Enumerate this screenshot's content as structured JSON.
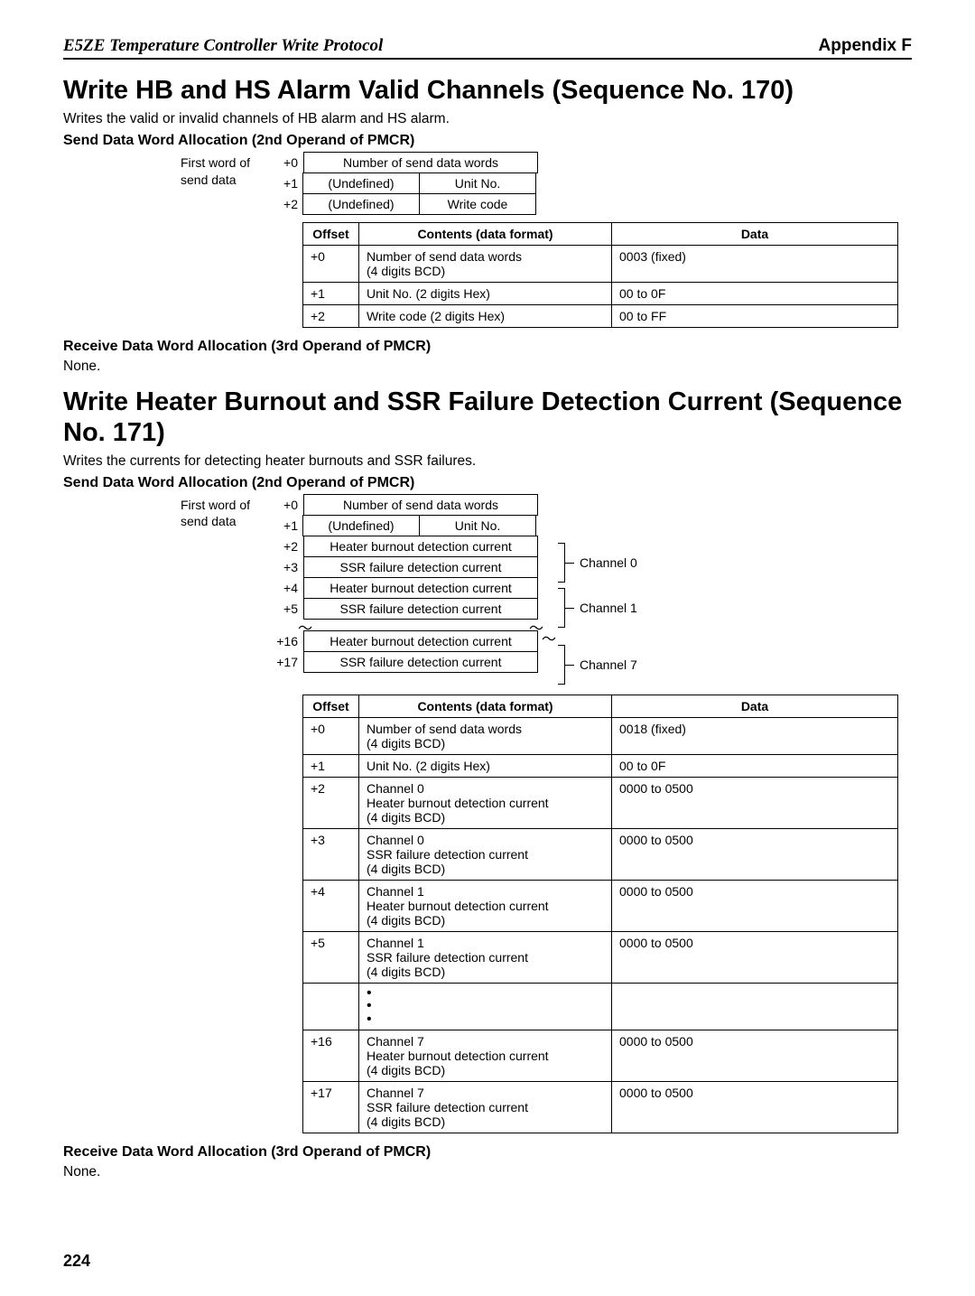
{
  "header": {
    "left": "E5ZE Temperature Controller Write Protocol",
    "right": "Appendix F"
  },
  "section1": {
    "title": "Write HB and HS Alarm Valid Channels (Sequence No. 170)",
    "intro": "Writes the valid or invalid channels of HB alarm and HS alarm.",
    "send_sub": "Send Data Word Allocation (2nd Operand of PMCR)",
    "first_word": "First word of send data",
    "alloc_offsets": [
      "+0",
      "+1",
      "+2"
    ],
    "alloc_row0": "Number of send data words",
    "alloc_row1a": "(Undefined)",
    "alloc_row1b": "Unit No.",
    "alloc_row2a": "(Undefined)",
    "alloc_row2b": "Write code",
    "table_headers": [
      "Offset",
      "Contents (data format)",
      "Data"
    ],
    "rows": [
      {
        "off": "+0",
        "cont": "Number of send data words\n(4 digits BCD)",
        "data": "0003 (fixed)"
      },
      {
        "off": "+1",
        "cont": "Unit No. (2 digits Hex)",
        "data": "00 to 0F"
      },
      {
        "off": "+2",
        "cont": "Write code (2 digits Hex)",
        "data": "00 to FF"
      }
    ],
    "recv_sub": "Receive Data Word Allocation (3rd Operand of PMCR)",
    "recv_none": "None."
  },
  "section2": {
    "title": "Write Heater Burnout and SSR Failure Detection Current (Sequence No. 171)",
    "intro": "Writes the currents for detecting heater burnouts and SSR failures.",
    "send_sub": "Send Data Word Allocation (2nd Operand of PMCR)",
    "first_word": "First word of send data",
    "alloc_offsets": [
      "+0",
      "+1",
      "+2",
      "+3",
      "+4",
      "+5",
      "",
      "+16",
      "+17"
    ],
    "alloc_row0": "Number of send data words",
    "alloc_row1a": "(Undefined)",
    "alloc_row1b": "Unit No.",
    "hb": "Heater burnout detection current",
    "ssr": "SSR failure detection current",
    "ch0": "Channel 0",
    "ch1": "Channel 1",
    "ch7": "Channel 7",
    "table_headers": [
      "Offset",
      "Contents (data format)",
      "Data"
    ],
    "rows": [
      {
        "off": "+0",
        "cont": "Number of send data words\n(4 digits BCD)",
        "data": "0018 (fixed)"
      },
      {
        "off": "+1",
        "cont": "Unit No. (2 digits Hex)",
        "data": "00 to 0F"
      },
      {
        "off": "+2",
        "cont": "Channel 0\nHeater burnout detection current\n(4 digits BCD)",
        "data": "0000 to 0500"
      },
      {
        "off": "+3",
        "cont": "Channel 0\nSSR failure detection current\n(4 digits BCD)",
        "data": "0000 to 0500"
      },
      {
        "off": "+4",
        "cont": "Channel 1\nHeater burnout detection current\n(4 digits BCD)",
        "data": "0000 to 0500"
      },
      {
        "off": "+5",
        "cont": "Channel 1\nSSR failure detection current\n(4 digits BCD)",
        "data": "0000 to 0500"
      },
      {
        "off": "",
        "cont": "dots",
        "data": ""
      },
      {
        "off": "+16",
        "cont": "Channel 7\nHeater burnout detection current\n(4 digits BCD)",
        "data": "0000 to 0500"
      },
      {
        "off": "+17",
        "cont": "Channel 7\nSSR failure detection current\n(4 digits BCD)",
        "data": "0000 to 0500"
      }
    ],
    "recv_sub": "Receive Data Word Allocation (3rd Operand of PMCR)",
    "recv_none": "None."
  },
  "page_number": "224"
}
